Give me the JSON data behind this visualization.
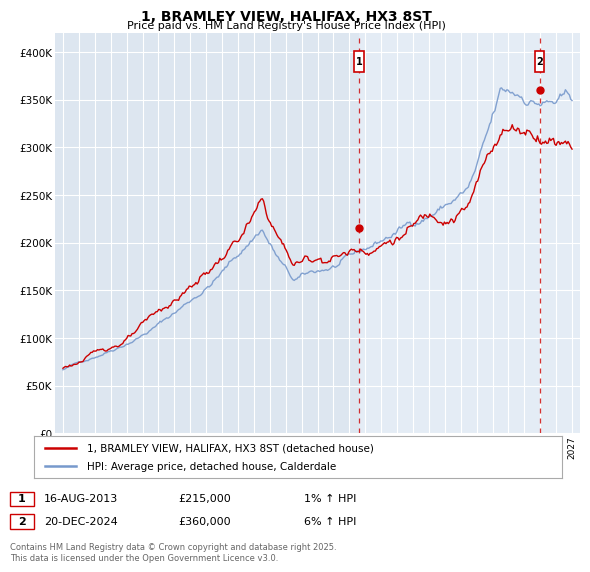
{
  "title": "1, BRAMLEY VIEW, HALIFAX, HX3 8ST",
  "subtitle": "Price paid vs. HM Land Registry's House Price Index (HPI)",
  "ylim": [
    0,
    420000
  ],
  "yticks": [
    0,
    50000,
    100000,
    150000,
    200000,
    250000,
    300000,
    350000,
    400000
  ],
  "ytick_labels": [
    "£0",
    "£50K",
    "£100K",
    "£150K",
    "£200K",
    "£250K",
    "£300K",
    "£350K",
    "£400K"
  ],
  "background_color": "#ffffff",
  "plot_bg_color": "#e8eef5",
  "plot_bg_color2": "#dde6f0",
  "grid_color": "#ffffff",
  "sale1_x": 2013.625,
  "sale1_y": 215000,
  "sale2_x": 2024.958,
  "sale2_y": 360000,
  "legend_line1": "1, BRAMLEY VIEW, HALIFAX, HX3 8ST (detached house)",
  "legend_line2": "HPI: Average price, detached house, Calderdale",
  "line_color_red": "#cc0000",
  "line_color_blue": "#7799cc",
  "footnote": "Contains HM Land Registry data © Crown copyright and database right 2025.\nThis data is licensed under the Open Government Licence v3.0.",
  "xlim_left": 1994.5,
  "xlim_right": 2027.5
}
